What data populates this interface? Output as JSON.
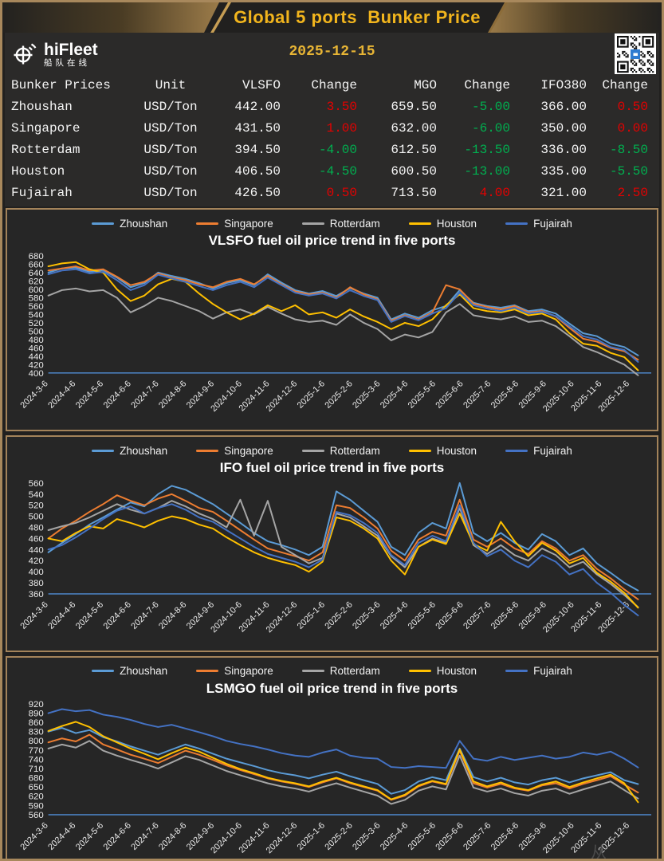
{
  "header": {
    "title": "Global 5 ports  Bunker Price",
    "date": "2025-12-15",
    "logo_name": "hiFleet",
    "logo_subtitle": "船队在线",
    "watermark": "从"
  },
  "colors": {
    "accent_gold": "#f2b51d",
    "border_tan": "#a8885c",
    "up_red": "#e60000",
    "down_green": "#00b050",
    "axis_blue": "#4a7ebb",
    "series": {
      "Zhoushan": "#5b9bd5",
      "Singapore": "#ed7d31",
      "Rotterdam": "#a5a5a5",
      "Houston": "#ffc000",
      "Fujairah": "#4472c4"
    }
  },
  "table": {
    "headers": [
      "Bunker Prices",
      "Unit",
      "VLSFO",
      "Change",
      "MGO",
      "Change",
      "IFO380",
      "Change"
    ],
    "rows": [
      {
        "port": "Zhoushan",
        "unit": "USD/Ton",
        "vlsfo": "442.00",
        "vlsfo_chg": "3.50",
        "vlsfo_dir": "up",
        "mgo": "659.50",
        "mgo_chg": "-5.00",
        "mgo_dir": "down",
        "ifo": "366.00",
        "ifo_chg": "0.50",
        "ifo_dir": "up"
      },
      {
        "port": "Singapore",
        "unit": "USD/Ton",
        "vlsfo": "431.50",
        "vlsfo_chg": "1.00",
        "vlsfo_dir": "up",
        "mgo": "632.00",
        "mgo_chg": "-6.00",
        "mgo_dir": "down",
        "ifo": "350.00",
        "ifo_chg": "0.00",
        "ifo_dir": "up"
      },
      {
        "port": "Rotterdam",
        "unit": "USD/Ton",
        "vlsfo": "394.50",
        "vlsfo_chg": "-4.00",
        "vlsfo_dir": "down",
        "mgo": "612.50",
        "mgo_chg": "-13.50",
        "mgo_dir": "down",
        "ifo": "336.00",
        "ifo_chg": "-8.50",
        "ifo_dir": "down"
      },
      {
        "port": "Houston",
        "unit": "USD/Ton",
        "vlsfo": "406.50",
        "vlsfo_chg": "-4.50",
        "vlsfo_dir": "down",
        "mgo": "600.50",
        "mgo_chg": "-13.00",
        "mgo_dir": "down",
        "ifo": "335.00",
        "ifo_chg": "-5.50",
        "ifo_dir": "down"
      },
      {
        "port": "Fujairah",
        "unit": "USD/Ton",
        "vlsfo": "426.50",
        "vlsfo_chg": "0.50",
        "vlsfo_dir": "up",
        "mgo": "713.50",
        "mgo_chg": "4.00",
        "mgo_dir": "up",
        "ifo": "321.00",
        "ifo_chg": "2.50",
        "ifo_dir": "up"
      }
    ]
  },
  "chart_data": [
    {
      "id": "vlsfo",
      "type": "line",
      "title": "VLSFO fuel oil price trend in five ports",
      "ylim": [
        400,
        680
      ],
      "yticks": [
        680,
        660,
        640,
        620,
        600,
        580,
        560,
        540,
        520,
        500,
        480,
        460,
        440,
        420,
        400
      ],
      "x_labels": [
        "2024-3-6",
        "2024-4-6",
        "2024-5-6",
        "2024-6-6",
        "2024-7-6",
        "2024-8-6",
        "2024-9-6",
        "2024-10-6",
        "2024-11-6",
        "2024-12-6",
        "2025-1-6",
        "2025-2-6",
        "2025-3-6",
        "2025-4-6",
        "2025-5-6",
        "2025-6-6",
        "2025-7-6",
        "2025-8-6",
        "2025-9-6",
        "2025-10-6",
        "2025-11-6",
        "2025-12-6"
      ],
      "legend_position": "top",
      "grid": false,
      "series": [
        {
          "name": "Zhoushan",
          "color": "#5b9bd5",
          "values": [
            640,
            650,
            652,
            642,
            646,
            628,
            605,
            615,
            640,
            632,
            625,
            615,
            602,
            615,
            622,
            610,
            636,
            616,
            598,
            590,
            596,
            584,
            603,
            590,
            580,
            528,
            542,
            532,
            550,
            560,
            598,
            568,
            560,
            556,
            562,
            548,
            552,
            542,
            518,
            495,
            488,
            470,
            462,
            442
          ]
        },
        {
          "name": "Singapore",
          "color": "#ed7d31",
          "values": [
            645,
            650,
            655,
            645,
            648,
            630,
            610,
            618,
            638,
            628,
            622,
            612,
            605,
            618,
            625,
            612,
            632,
            612,
            595,
            588,
            592,
            580,
            605,
            588,
            576,
            525,
            538,
            528,
            545,
            610,
            600,
            566,
            558,
            552,
            560,
            545,
            548,
            535,
            508,
            482,
            475,
            460,
            452,
            431.5
          ]
        },
        {
          "name": "Rotterdam",
          "color": "#a5a5a5",
          "values": [
            585,
            598,
            602,
            595,
            598,
            580,
            545,
            560,
            580,
            572,
            560,
            548,
            530,
            545,
            552,
            540,
            558,
            542,
            528,
            522,
            525,
            515,
            540,
            520,
            505,
            478,
            492,
            485,
            498,
            545,
            565,
            538,
            532,
            528,
            535,
            522,
            525,
            512,
            488,
            462,
            450,
            435,
            420,
            394.5
          ]
        },
        {
          "name": "Houston",
          "color": "#ffc000",
          "values": [
            655,
            662,
            665,
            648,
            640,
            600,
            572,
            585,
            612,
            625,
            618,
            590,
            565,
            545,
            528,
            542,
            562,
            548,
            562,
            540,
            545,
            532,
            552,
            535,
            522,
            505,
            520,
            512,
            528,
            562,
            588,
            555,
            548,
            545,
            552,
            538,
            542,
            528,
            495,
            470,
            465,
            448,
            438,
            406.5
          ]
        },
        {
          "name": "Fujairah",
          "color": "#4472c4",
          "values": [
            636,
            645,
            648,
            638,
            642,
            622,
            598,
            610,
            635,
            626,
            618,
            608,
            598,
            610,
            618,
            605,
            628,
            610,
            592,
            585,
            590,
            578,
            598,
            584,
            574,
            522,
            536,
            526,
            542,
            555,
            592,
            562,
            554,
            548,
            556,
            542,
            546,
            536,
            512,
            488,
            480,
            462,
            455,
            426.5
          ]
        }
      ]
    },
    {
      "id": "ifo",
      "type": "line",
      "title": "IFO fuel oil price trend in five ports",
      "ylim": [
        360,
        560
      ],
      "yticks": [
        560,
        540,
        520,
        500,
        480,
        460,
        440,
        420,
        400,
        380,
        360
      ],
      "x_labels": [
        "2024-3-6",
        "2024-4-6",
        "2024-5-6",
        "2024-6-6",
        "2024-7-6",
        "2024-8-6",
        "2024-9-6",
        "2024-10-6",
        "2024-11-6",
        "2024-12-6",
        "2025-1-6",
        "2025-2-6",
        "2025-3-6",
        "2025-4-6",
        "2025-5-6",
        "2025-6-6",
        "2025-7-6",
        "2025-8-6",
        "2025-9-6",
        "2025-10-6",
        "2025-11-6",
        "2025-12-6"
      ],
      "legend_position": "top",
      "grid": false,
      "series": [
        {
          "name": "Zhoushan",
          "color": "#5b9bd5",
          "values": [
            435,
            452,
            468,
            485,
            498,
            512,
            525,
            518,
            540,
            555,
            548,
            535,
            522,
            505,
            488,
            470,
            455,
            448,
            440,
            430,
            445,
            545,
            530,
            510,
            490,
            445,
            430,
            470,
            488,
            478,
            560,
            470,
            455,
            470,
            452,
            440,
            468,
            455,
            430,
            442,
            415,
            398,
            380,
            366
          ]
        },
        {
          "name": "Singapore",
          "color": "#ed7d31",
          "values": [
            460,
            478,
            492,
            508,
            522,
            538,
            528,
            520,
            532,
            540,
            528,
            515,
            508,
            492,
            475,
            458,
            442,
            435,
            428,
            420,
            435,
            520,
            515,
            498,
            478,
            438,
            420,
            458,
            472,
            465,
            530,
            458,
            445,
            460,
            442,
            432,
            455,
            442,
            420,
            430,
            405,
            388,
            368,
            350
          ]
        },
        {
          "name": "Rotterdam",
          "color": "#a5a5a5",
          "values": [
            475,
            482,
            488,
            498,
            510,
            522,
            512,
            505,
            515,
            528,
            518,
            505,
            495,
            480,
            530,
            465,
            528,
            445,
            430,
            415,
            425,
            505,
            498,
            482,
            465,
            428,
            408,
            445,
            460,
            452,
            515,
            448,
            432,
            448,
            430,
            420,
            442,
            430,
            408,
            418,
            395,
            378,
            358,
            336
          ]
        },
        {
          "name": "Houston",
          "color": "#ffc000",
          "values": [
            460,
            455,
            470,
            482,
            478,
            495,
            488,
            480,
            492,
            500,
            495,
            485,
            478,
            462,
            448,
            435,
            425,
            418,
            412,
            400,
            418,
            498,
            492,
            478,
            460,
            420,
            395,
            445,
            458,
            450,
            505,
            450,
            438,
            490,
            455,
            428,
            452,
            438,
            415,
            425,
            398,
            382,
            362,
            335
          ]
        },
        {
          "name": "Fujairah",
          "color": "#4472c4",
          "values": [
            440,
            448,
            462,
            478,
            495,
            510,
            518,
            505,
            515,
            522,
            512,
            498,
            490,
            475,
            460,
            445,
            432,
            425,
            418,
            408,
            422,
            508,
            502,
            488,
            470,
            430,
            412,
            452,
            465,
            455,
            520,
            452,
            428,
            440,
            420,
            408,
            430,
            418,
            395,
            405,
            380,
            362,
            340,
            321
          ]
        }
      ]
    },
    {
      "id": "lsmgo",
      "type": "line",
      "title": "LSMGO fuel oil price trend in five ports",
      "ylim": [
        560,
        920
      ],
      "yticks": [
        920,
        890,
        860,
        830,
        800,
        770,
        740,
        710,
        680,
        650,
        620,
        590,
        560
      ],
      "x_labels": [
        "2024-3-6",
        "2024-4-6",
        "2024-5-6",
        "2024-6-6",
        "2024-7-6",
        "2024-8-6",
        "2024-9-6",
        "2024-10-6",
        "2024-11-6",
        "2024-12-6",
        "2025-1-6",
        "2025-2-6",
        "2025-3-6",
        "2025-4-6",
        "2025-5-6",
        "2025-6-6",
        "2025-7-6",
        "2025-8-6",
        "2025-9-6",
        "2025-10-6",
        "2025-11-6",
        "2025-12-6"
      ],
      "legend_position": "top",
      "grid": false,
      "series": [
        {
          "name": "Zhoushan",
          "color": "#5b9bd5",
          "values": [
            830,
            842,
            825,
            835,
            812,
            798,
            782,
            768,
            755,
            772,
            788,
            775,
            758,
            742,
            730,
            718,
            705,
            695,
            688,
            678,
            690,
            700,
            685,
            672,
            660,
            628,
            640,
            668,
            682,
            672,
            775,
            682,
            668,
            680,
            665,
            658,
            672,
            680,
            665,
            678,
            688,
            698,
            672,
            659.5
          ]
        },
        {
          "name": "Singapore",
          "color": "#ed7d31",
          "values": [
            795,
            808,
            798,
            820,
            788,
            772,
            755,
            742,
            728,
            748,
            768,
            755,
            738,
            720,
            705,
            692,
            678,
            668,
            660,
            650,
            665,
            678,
            662,
            650,
            638,
            608,
            622,
            652,
            668,
            658,
            768,
            662,
            648,
            660,
            645,
            638,
            655,
            662,
            645,
            660,
            672,
            685,
            658,
            632
          ]
        },
        {
          "name": "Rotterdam",
          "color": "#a5a5a5",
          "values": [
            775,
            788,
            778,
            800,
            768,
            752,
            738,
            725,
            710,
            730,
            750,
            738,
            720,
            702,
            688,
            675,
            662,
            652,
            645,
            635,
            650,
            662,
            648,
            635,
            622,
            595,
            608,
            638,
            652,
            642,
            752,
            648,
            635,
            645,
            630,
            622,
            638,
            645,
            628,
            642,
            655,
            668,
            640,
            612.5
          ]
        },
        {
          "name": "Houston",
          "color": "#ffc000",
          "values": [
            832,
            848,
            862,
            845,
            815,
            795,
            775,
            758,
            740,
            760,
            778,
            765,
            745,
            725,
            708,
            695,
            680,
            670,
            662,
            652,
            668,
            680,
            665,
            652,
            640,
            610,
            625,
            655,
            670,
            660,
            772,
            668,
            652,
            665,
            648,
            640,
            658,
            668,
            650,
            665,
            678,
            690,
            662,
            600.5
          ]
        },
        {
          "name": "Fujairah",
          "color": "#4472c4",
          "values": [
            890,
            903,
            896,
            900,
            885,
            878,
            868,
            855,
            845,
            852,
            840,
            828,
            815,
            800,
            790,
            782,
            772,
            760,
            752,
            748,
            762,
            772,
            752,
            745,
            742,
            715,
            712,
            718,
            715,
            712,
            800,
            742,
            735,
            748,
            738,
            745,
            752,
            742,
            748,
            762,
            755,
            765,
            742,
            713.5
          ]
        }
      ]
    }
  ]
}
